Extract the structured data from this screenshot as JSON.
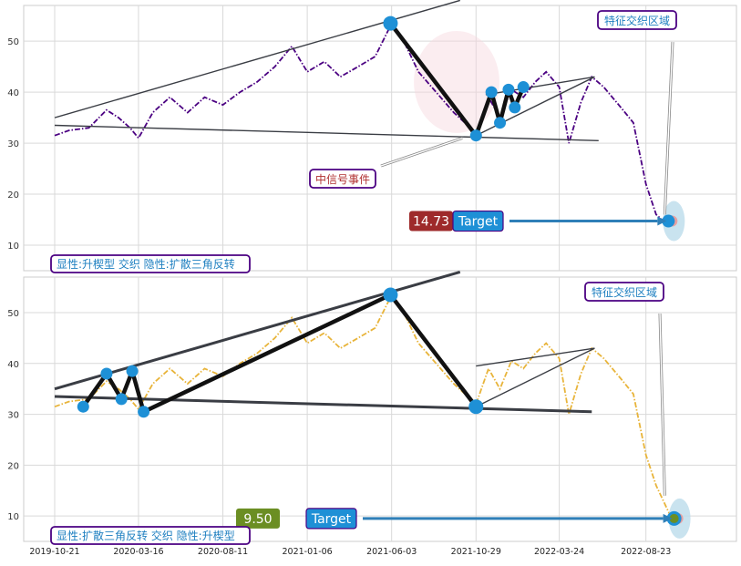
{
  "chart_data": [
    {
      "type": "line",
      "title": "",
      "xlabel": "",
      "ylabel": "",
      "xlim": [
        "2019-10-21",
        "2022-12-15"
      ],
      "ylim": [
        5,
        57
      ],
      "x_ticks": [],
      "y_ticks": [
        10,
        20,
        30,
        40,
        50
      ],
      "grid": true,
      "series_color": "#4b0082",
      "series": [
        {
          "name": "",
          "points": [
            [
              "2019-10-21",
              31.5
            ],
            [
              "2019-11-15",
              32.5
            ],
            [
              "2019-12-20",
              33
            ],
            [
              "2020-01-20",
              36.5
            ],
            [
              "2020-02-10",
              35
            ],
            [
              "2020-03-01",
              33
            ],
            [
              "2020-03-16",
              31
            ],
            [
              "2020-04-10",
              36
            ],
            [
              "2020-05-10",
              39
            ],
            [
              "2020-06-10",
              36
            ],
            [
              "2020-07-10",
              39
            ],
            [
              "2020-08-11",
              37.5
            ],
            [
              "2020-09-10",
              40
            ],
            [
              "2020-10-10",
              42
            ],
            [
              "2020-11-10",
              45
            ],
            [
              "2020-12-10",
              49
            ],
            [
              "2021-01-06",
              44
            ],
            [
              "2021-02-05",
              46
            ],
            [
              "2021-03-05",
              43
            ],
            [
              "2021-04-05",
              45
            ],
            [
              "2021-05-05",
              47
            ],
            [
              "2021-06-01",
              53
            ],
            [
              "2021-06-20",
              51
            ],
            [
              "2021-07-20",
              44
            ],
            [
              "2021-08-20",
              40
            ],
            [
              "2021-09-20",
              36
            ],
            [
              "2021-10-29",
              32
            ],
            [
              "2021-11-20",
              39
            ],
            [
              "2021-12-10",
              35
            ],
            [
              "2021-12-30",
              40.5
            ],
            [
              "2022-01-20",
              39
            ],
            [
              "2022-02-10",
              42
            ],
            [
              "2022-03-01",
              44
            ],
            [
              "2022-03-24",
              41
            ],
            [
              "2022-04-10",
              30
            ],
            [
              "2022-05-01",
              38
            ],
            [
              "2022-05-20",
              43
            ],
            [
              "2022-06-10",
              41
            ],
            [
              "2022-07-10",
              37
            ],
            [
              "2022-08-01",
              34
            ],
            [
              "2022-08-23",
              22
            ],
            [
              "2022-09-10",
              16
            ],
            [
              "2022-09-25",
              14.5
            ]
          ]
        }
      ],
      "trendlines": [
        {
          "from": [
            "2019-10-21",
            35
          ],
          "to": [
            "2021-10-01",
            58
          ]
        },
        {
          "from": [
            "2019-10-21",
            33.5
          ],
          "to": [
            "2022-06-01",
            30.5
          ]
        },
        {
          "from": [
            "2021-10-29",
            31.5
          ],
          "to": [
            "2022-05-25",
            43
          ]
        },
        {
          "from": [
            "2021-11-15",
            39.5
          ],
          "to": [
            "2022-05-25",
            43
          ]
        }
      ],
      "pattern_path": [
        [
          "2021-06-01",
          53.5
        ],
        [
          "2021-10-29",
          31.5
        ],
        [
          "2021-11-25",
          40
        ],
        [
          "2021-12-10",
          34
        ],
        [
          "2021-12-25",
          40.5
        ],
        [
          "2022-01-05",
          37
        ],
        [
          "2022-01-20",
          41
        ]
      ],
      "highlight_ellipse": {
        "center": [
          "2021-09-25",
          42
        ],
        "rx_days": 75,
        "ry": 10
      },
      "target": {
        "value": 14.73,
        "label": "Target",
        "value_label": "14.73",
        "value_color": "#9e2a2b",
        "end_date": "2022-09-25"
      },
      "annotations": [
        {
          "text": "特征交织区域",
          "anchor": [
            "2022-06-20",
            55
          ],
          "arrow_to": [
            "2022-09-25",
            16
          ]
        },
        {
          "text": "中信号事件",
          "anchor": [
            "2021-06-01",
            22.5
          ],
          "arrow_to": [
            "2021-10-05",
            31
          ]
        }
      ],
      "pattern_label": "显性:升楔型 交织 隐性:扩散三角反转"
    },
    {
      "type": "line",
      "title": "",
      "xlabel": "",
      "ylabel": "",
      "xlim": [
        "2019-10-21",
        "2022-12-15"
      ],
      "ylim": [
        5,
        57
      ],
      "x_ticks": [
        "2019-10-21",
        "2020-03-16",
        "2020-08-11",
        "2021-01-06",
        "2021-06-03",
        "2021-10-29",
        "2022-03-24",
        "2022-08-23"
      ],
      "y_ticks": [
        10,
        20,
        30,
        40,
        50
      ],
      "grid": true,
      "series_color": "#e8b43a",
      "series": [
        {
          "name": "",
          "points": [
            [
              "2019-10-21",
              31.5
            ],
            [
              "2019-11-15",
              32.5
            ],
            [
              "2019-12-20",
              33
            ],
            [
              "2020-01-20",
              36.5
            ],
            [
              "2020-02-10",
              35
            ],
            [
              "2020-03-01",
              33
            ],
            [
              "2020-03-16",
              31
            ],
            [
              "2020-04-10",
              36
            ],
            [
              "2020-05-10",
              39
            ],
            [
              "2020-06-10",
              36
            ],
            [
              "2020-07-10",
              39
            ],
            [
              "2020-08-11",
              37.5
            ],
            [
              "2020-09-10",
              40
            ],
            [
              "2020-10-10",
              42
            ],
            [
              "2020-11-10",
              45
            ],
            [
              "2020-12-10",
              49
            ],
            [
              "2021-01-06",
              44
            ],
            [
              "2021-02-05",
              46
            ],
            [
              "2021-03-05",
              43
            ],
            [
              "2021-04-05",
              45
            ],
            [
              "2021-05-05",
              47
            ],
            [
              "2021-06-01",
              53
            ],
            [
              "2021-06-20",
              51
            ],
            [
              "2021-07-20",
              44
            ],
            [
              "2021-08-20",
              40
            ],
            [
              "2021-09-20",
              36
            ],
            [
              "2021-10-29",
              32
            ],
            [
              "2021-11-20",
              39
            ],
            [
              "2021-12-10",
              35
            ],
            [
              "2021-12-30",
              40.5
            ],
            [
              "2022-01-20",
              39
            ],
            [
              "2022-02-10",
              42
            ],
            [
              "2022-03-01",
              44
            ],
            [
              "2022-03-24",
              41
            ],
            [
              "2022-04-10",
              30
            ],
            [
              "2022-05-01",
              38
            ],
            [
              "2022-05-20",
              43
            ],
            [
              "2022-06-10",
              41
            ],
            [
              "2022-07-10",
              37
            ],
            [
              "2022-08-01",
              34
            ],
            [
              "2022-08-23",
              22
            ],
            [
              "2022-09-10",
              16
            ],
            [
              "2022-10-05",
              10
            ]
          ]
        }
      ],
      "trendlines": [
        {
          "from": [
            "2019-10-21",
            35
          ],
          "to": [
            "2021-10-01",
            58
          ]
        },
        {
          "from": [
            "2019-10-21",
            33.5
          ],
          "to": [
            "2022-05-20",
            30.5
          ]
        },
        {
          "from": [
            "2021-10-29",
            31.5
          ],
          "to": [
            "2022-05-25",
            43
          ]
        },
        {
          "from": [
            "2021-10-29",
            39.5
          ],
          "to": [
            "2022-05-25",
            43
          ]
        }
      ],
      "pattern_path": [
        [
          "2019-12-10",
          31.5
        ],
        [
          "2020-01-20",
          38
        ],
        [
          "2020-02-15",
          33
        ],
        [
          "2020-03-05",
          38.5
        ],
        [
          "2020-03-25",
          30.5
        ],
        [
          "2021-06-01",
          53.5
        ],
        [
          "2021-10-29",
          31.5
        ]
      ],
      "highlight_ellipse": null,
      "target": {
        "value": 9.5,
        "label": "Target",
        "value_label": "9.50",
        "value_color": "#6b8e23",
        "end_date": "2022-10-05"
      },
      "annotations": [
        {
          "text": "特征交织区域",
          "anchor": [
            "2022-06-20",
            54.5
          ],
          "arrow_to": [
            "2022-09-25",
            14
          ]
        }
      ],
      "pattern_label": "显性:扩散三角反转 交织 隐性:升楔型"
    }
  ]
}
